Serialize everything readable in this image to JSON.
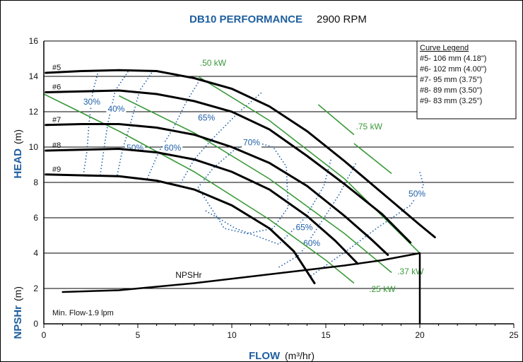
{
  "chart_data": {
    "type": "line",
    "title": "DB10 PERFORMANCE",
    "subtitle": "2900 RPM",
    "xlabel": "FLOW",
    "xlabel_unit": "(m³/hr)",
    "ylabel_head": "HEAD",
    "ylabel_head_unit": "(m)",
    "ylabel_npsh": "NPSHr",
    "ylabel_npsh_unit": "(m)",
    "xlim": [
      0,
      25
    ],
    "ylim": [
      0,
      16
    ],
    "xticks": [
      "0",
      "5",
      "10",
      "15",
      "20",
      "25"
    ],
    "yticks": [
      "0",
      "2",
      "4",
      "6",
      "8",
      "10",
      "12",
      "14",
      "16"
    ],
    "grid": "horizontal",
    "series": [
      {
        "name": "#5",
        "points": [
          [
            0.1,
            14.2
          ],
          [
            2,
            14.3
          ],
          [
            4,
            14.35
          ],
          [
            6,
            14.3
          ],
          [
            8,
            13.9
          ],
          [
            10,
            13.3
          ],
          [
            12,
            12.3
          ],
          [
            14,
            10.9
          ],
          [
            16,
            9.2
          ],
          [
            18,
            7.4
          ],
          [
            20,
            5.6
          ],
          [
            20.8,
            4.9
          ]
        ]
      },
      {
        "name": "#6",
        "points": [
          [
            0.1,
            13.1
          ],
          [
            2,
            13.15
          ],
          [
            4,
            13.2
          ],
          [
            6,
            13.0
          ],
          [
            8,
            12.6
          ],
          [
            10,
            12.0
          ],
          [
            12,
            11.0
          ],
          [
            14,
            9.5
          ],
          [
            16,
            7.9
          ],
          [
            18,
            6.2
          ],
          [
            19.5,
            4.6
          ]
        ]
      },
      {
        "name": "#7",
        "points": [
          [
            0.1,
            11.25
          ],
          [
            2,
            11.3
          ],
          [
            4,
            11.3
          ],
          [
            6,
            11.1
          ],
          [
            8,
            10.7
          ],
          [
            10,
            10.0
          ],
          [
            12,
            9.1
          ],
          [
            14,
            7.8
          ],
          [
            16,
            6.1
          ],
          [
            17.4,
            4.8
          ],
          [
            18.3,
            3.9
          ]
        ]
      },
      {
        "name": "#8",
        "points": [
          [
            0.1,
            9.8
          ],
          [
            2,
            9.85
          ],
          [
            4,
            9.9
          ],
          [
            6,
            9.7
          ],
          [
            8,
            9.3
          ],
          [
            10,
            8.6
          ],
          [
            12,
            7.6
          ],
          [
            14,
            6.1
          ],
          [
            15.5,
            4.7
          ],
          [
            16.7,
            3.4
          ]
        ]
      },
      {
        "name": "#9",
        "points": [
          [
            0.1,
            8.45
          ],
          [
            2,
            8.4
          ],
          [
            4,
            8.35
          ],
          [
            6,
            8.1
          ],
          [
            8,
            7.6
          ],
          [
            10,
            6.7
          ],
          [
            12,
            5.4
          ],
          [
            13.3,
            4.1
          ],
          [
            14.4,
            2.3
          ]
        ]
      }
    ],
    "npshr": {
      "name": "NPSHr",
      "points": [
        [
          1,
          1.8
        ],
        [
          4,
          1.9
        ],
        [
          8,
          2.3
        ],
        [
          12,
          2.8
        ],
        [
          16,
          3.3
        ],
        [
          18,
          3.6
        ],
        [
          20,
          4.0
        ]
      ]
    },
    "power_lines": [
      {
        "label": ".25 kW",
        "label_pos": [
          17.3,
          1.8
        ],
        "points": [
          [
            0,
            13.0
          ],
          [
            4,
            10.9
          ],
          [
            8,
            8.6
          ],
          [
            12,
            5.9
          ],
          [
            15,
            3.6
          ],
          [
            16.5,
            2.3
          ]
        ]
      },
      {
        "label": ".37 kW",
        "label_pos": [
          18.8,
          2.8
        ],
        "points": [
          [
            4,
            12.9
          ],
          [
            8,
            10.8
          ],
          [
            12,
            8.2
          ],
          [
            16,
            5.1
          ],
          [
            18.5,
            2.9
          ]
        ]
      },
      {
        "label": ".50 kW",
        "label_pos": [
          8.3,
          14.6
        ],
        "points": [
          [
            8.2,
            14.0
          ],
          [
            12,
            11.5
          ],
          [
            16,
            8.2
          ],
          [
            20,
            4.0
          ]
        ]
      },
      {
        "label": ".75 kW",
        "label_pos": [
          16.6,
          11.0
        ],
        "points": [
          [
            14.6,
            12.4
          ],
          [
            16.5,
            10.7
          ]
        ]
      },
      {
        "label": "",
        "label_pos": [
          0,
          0
        ],
        "points": [
          [
            16.5,
            10.2
          ],
          [
            18.5,
            8.5
          ]
        ]
      }
    ],
    "efficiency_lines": [
      {
        "label": "30%",
        "label_pos": [
          2.1,
          12.4
        ],
        "points": [
          [
            2.1,
            8.4
          ],
          [
            2.3,
            9.8
          ],
          [
            2.4,
            11.3
          ],
          [
            2.6,
            13.1
          ],
          [
            2.9,
            14.3
          ]
        ]
      },
      {
        "label": "40%",
        "label_pos": [
          3.4,
          12.0
        ],
        "points": [
          [
            3.0,
            8.4
          ],
          [
            3.2,
            9.9
          ],
          [
            3.4,
            11.3
          ],
          [
            3.8,
            13.2
          ],
          [
            4.5,
            14.3
          ]
        ]
      },
      {
        "label": "50%",
        "label_pos": [
          4.4,
          9.8
        ],
        "points": [
          [
            3.9,
            8.4
          ],
          [
            4.2,
            9.9
          ],
          [
            4.6,
            11.3
          ],
          [
            5.1,
            13.2
          ],
          [
            5.8,
            14.3
          ]
        ]
      },
      {
        "label": "60%",
        "label_pos": [
          6.4,
          9.8
        ],
        "points": [
          [
            5.5,
            8.2
          ],
          [
            6.1,
            9.7
          ],
          [
            6.9,
            11.1
          ],
          [
            7.6,
            12.6
          ],
          [
            8.3,
            13.8
          ]
        ]
      },
      {
        "label": "65%",
        "label_pos": [
          8.2,
          11.5
        ],
        "points": [
          [
            7.2,
            7.8
          ],
          [
            8.0,
            9.3
          ],
          [
            9.0,
            10.5
          ],
          [
            10.3,
            11.9
          ],
          [
            11.6,
            13.1
          ]
        ]
      },
      {
        "label": "70%",
        "label_pos": [
          10.6,
          10.1
        ],
        "points": [
          [
            8.2,
            7.7
          ],
          [
            9.0,
            8.8
          ],
          [
            10.2,
            9.9
          ],
          [
            11.2,
            10.3
          ],
          [
            12.2,
            10.0
          ],
          [
            12.9,
            8.9
          ],
          [
            13.0,
            6.6
          ],
          [
            12.2,
            5.4
          ],
          [
            10.8,
            5.1
          ],
          [
            9.6,
            5.4
          ],
          [
            8.2,
            7.7
          ]
        ]
      },
      {
        "label": "65%",
        "label_pos": [
          13.4,
          5.3
        ],
        "points": [
          [
            8.6,
            6.4
          ],
          [
            10.2,
            5.4
          ],
          [
            12.5,
            4.5
          ],
          [
            13.9,
            6.0
          ],
          [
            14.9,
            7.8
          ],
          [
            15.3,
            9.4
          ]
        ]
      },
      {
        "label": "60%",
        "label_pos": [
          13.8,
          4.4
        ],
        "points": [
          [
            12.5,
            3.2
          ],
          [
            13.6,
            3.9
          ],
          [
            14.6,
            5.5
          ],
          [
            15.7,
            7.3
          ],
          [
            16.6,
            9.1
          ]
        ]
      },
      {
        "label": "50%",
        "label_pos": [
          19.4,
          7.2
        ],
        "points": [
          [
            14.2,
            2.7
          ],
          [
            16.2,
            4.2
          ],
          [
            17.7,
            5.4
          ],
          [
            19.5,
            6.7
          ],
          [
            20.2,
            7.8
          ],
          [
            20.0,
            8.6
          ]
        ]
      }
    ],
    "legend": {
      "title": "Curve Legend",
      "items": [
        "#5- 106 mm (4.18\")",
        "#6- 102 mm (4.00\")",
        "#7- 95 mm (3.75\")",
        "#8- 89 mm (3.50\")",
        "#9- 83 mm (3.25\")"
      ]
    },
    "annotations": {
      "min_flow": "Min. Flow-1.9 lpm"
    }
  },
  "colors": {
    "title": "#1f5f9f",
    "efficiency": "#2060a8",
    "power": "#3a9a3a",
    "curves": "#000000"
  }
}
